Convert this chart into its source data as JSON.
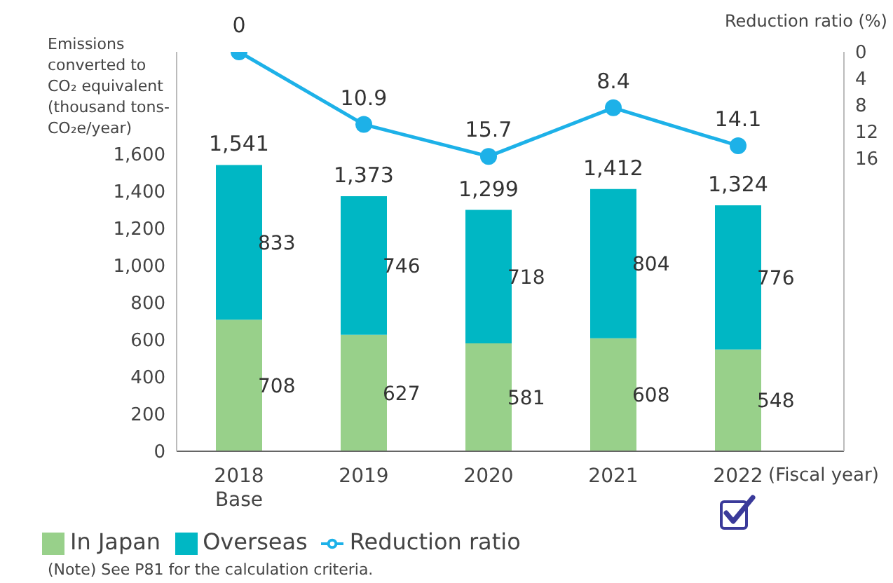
{
  "chart_data": {
    "type": "bar",
    "stacked": true,
    "ylabel": "Emissions converted to CO₂ equivalent (thousand tons-CO₂e/year)",
    "y2label": "Reduction ratio (%)",
    "xlabel": "(Fiscal year)",
    "categories": [
      "2018 Base",
      "2019",
      "2020",
      "2021",
      "2022"
    ],
    "series": [
      {
        "name": "In Japan",
        "color": "#98d08a",
        "values": [
          708,
          627,
          581,
          608,
          548
        ]
      },
      {
        "name": "Overseas",
        "color": "#00b7c4",
        "values": [
          833,
          746,
          718,
          804,
          776
        ]
      },
      {
        "name": "Reduction ratio",
        "type": "line",
        "axis": "y2",
        "color": "#1db1e8",
        "values": [
          0,
          10.9,
          15.7,
          8.4,
          14.1
        ]
      }
    ],
    "ylim": [
      0,
      2150
    ],
    "yticks": [
      0,
      200,
      400,
      600,
      800,
      {
        "value": 1000,
        "label": "1,000"
      },
      {
        "value": 1200,
        "label": "1,200"
      },
      {
        "value": 1400,
        "label": "1,400"
      },
      {
        "value": 1600,
        "label": "1,600"
      }
    ],
    "y2lim": [
      60,
      0
    ],
    "y2ticks": [
      0,
      4,
      8,
      12,
      16
    ],
    "marker": "circle",
    "data_labels": true,
    "totals": [
      "1,541",
      "1,373",
      "1,299",
      "1,412",
      "1,324"
    ],
    "legend": "bottom left",
    "grid": false,
    "annotations": [
      "(Note) See P81 for the calculation criteria."
    ]
  }
}
